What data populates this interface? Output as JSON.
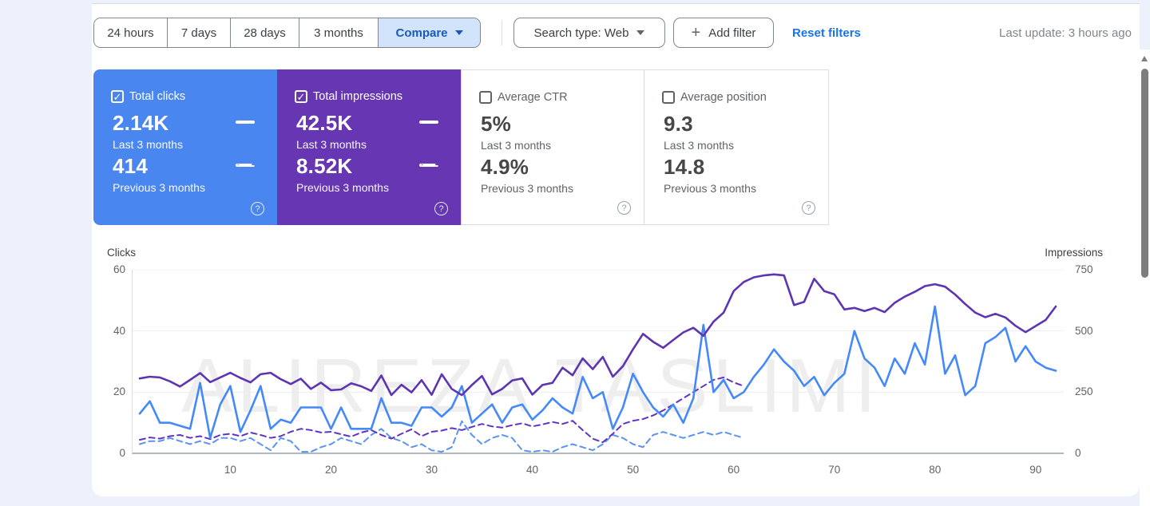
{
  "toolbar": {
    "date_buttons": [
      "24 hours",
      "7 days",
      "28 days",
      "3 months"
    ],
    "compare_label": "Compare",
    "search_type_label": "Search type: Web",
    "add_filter_label": "Add filter",
    "reset_filters_label": "Reset filters",
    "last_update": "Last update: 3 hours ago"
  },
  "cards": [
    {
      "label": "Total clicks",
      "checked": true,
      "bg": "#4a86f0",
      "value1": "2.14K",
      "caption1": "Last 3 months",
      "value2": "414",
      "caption2": "Previous 3 months"
    },
    {
      "label": "Total impressions",
      "checked": true,
      "bg": "#6636b3",
      "value1": "42.5K",
      "caption1": "Last 3 months",
      "value2": "8.52K",
      "caption2": "Previous 3 months"
    },
    {
      "label": "Average CTR",
      "checked": false,
      "bg": "#ffffff",
      "value1": "5%",
      "caption1": "Last 3 months",
      "value2": "4.9%",
      "caption2": "Previous 3 months"
    },
    {
      "label": "Average position",
      "checked": false,
      "bg": "#ffffff",
      "value1": "9.3",
      "caption1": "Last 3 months",
      "value2": "14.8",
      "caption2": "Previous 3 months"
    }
  ],
  "colors": {
    "clicks_line": "#4489f7",
    "impressions_line": "#5e35b1",
    "card_clicks_bg": "#4a86f0",
    "card_impressions_bg": "#6636b3",
    "link_blue": "#1a73e8",
    "compare_bg": "#d2e3fc",
    "page_bg": "#edf1fb"
  },
  "chart_data": {
    "type": "line",
    "title": "",
    "watermark": "ALIREZA TASLIMI",
    "left_axis": {
      "label": "Clicks",
      "max": 60,
      "ticks": [
        0,
        20,
        40,
        60
      ]
    },
    "right_axis": {
      "label": "Impressions",
      "max": 750,
      "ticks": [
        0,
        250,
        500,
        750
      ]
    },
    "x_ticks": [
      10,
      20,
      30,
      40,
      50,
      60,
      70,
      80,
      90
    ],
    "grid": true,
    "series": [
      {
        "name": "total-clicks-last-3-months",
        "axis": "left",
        "style": "solid",
        "color": "#4489f7",
        "values": [
          13,
          17,
          10,
          10,
          9,
          8,
          23,
          5,
          16,
          22,
          7,
          14,
          22,
          8,
          11,
          10,
          15,
          15,
          15,
          8,
          15,
          8,
          8,
          8,
          18,
          10,
          10,
          9,
          15,
          15,
          12,
          15,
          22,
          10,
          13,
          16,
          10,
          15,
          16,
          11,
          14,
          18,
          15,
          13,
          25,
          18,
          20,
          8,
          15,
          26,
          20,
          15,
          12,
          16,
          10,
          18,
          42,
          20,
          24,
          18,
          20,
          25,
          29,
          34,
          30,
          27,
          22,
          25,
          19,
          23,
          26,
          40,
          31,
          28,
          22,
          31,
          26,
          36,
          29,
          48,
          26,
          32,
          19,
          22,
          36,
          38,
          41,
          30,
          35,
          30,
          28,
          27
        ]
      },
      {
        "name": "total-impressions-last-3-months",
        "axis": "right",
        "style": "solid",
        "color": "#5e35b1",
        "values": [
          306,
          313,
          310,
          294,
          273,
          300,
          328,
          291,
          310,
          329,
          308,
          290,
          323,
          329,
          303,
          283,
          305,
          263,
          289,
          258,
          261,
          286,
          274,
          255,
          318,
          238,
          280,
          249,
          299,
          239,
          323,
          263,
          238,
          279,
          316,
          241,
          263,
          298,
          306,
          240,
          279,
          288,
          350,
          319,
          388,
          344,
          394,
          313,
          356,
          425,
          488,
          456,
          431,
          463,
          494,
          513,
          480,
          538,
          575,
          663,
          700,
          719,
          727,
          731,
          727,
          606,
          619,
          713,
          663,
          650,
          588,
          594,
          581,
          594,
          577,
          615,
          640,
          660,
          683,
          691,
          681,
          649,
          610,
          575,
          556,
          570,
          555,
          521,
          495,
          520,
          545,
          600
        ]
      },
      {
        "name": "total-clicks-previous-3-months",
        "axis": "left",
        "style": "dashed",
        "color": "#5a93f0",
        "values": [
          3,
          4,
          4,
          5,
          4,
          3,
          4,
          3,
          5,
          5,
          4,
          5,
          3,
          1,
          5,
          4,
          0.5,
          0.5,
          2,
          3,
          5,
          4,
          3,
          6,
          8,
          5,
          4,
          2,
          3,
          1,
          0.5,
          2,
          10.5,
          6,
          3,
          5,
          6,
          5,
          1,
          0.5,
          1,
          0.5,
          2,
          3,
          2,
          1,
          3,
          6,
          5,
          3,
          2,
          6,
          7,
          6,
          5,
          6,
          7,
          6,
          7,
          6,
          5
        ]
      },
      {
        "name": "total-impressions-previous-3-months",
        "axis": "right",
        "style": "dashed",
        "color": "#5f35c0",
        "values": [
          55,
          65,
          60,
          70,
          75,
          63,
          70,
          58,
          75,
          80,
          70,
          85,
          75,
          63,
          70,
          88,
          100,
          95,
          85,
          88,
          78,
          68,
          85,
          95,
          75,
          60,
          80,
          98,
          70,
          88,
          93,
          103,
          95,
          108,
          120,
          110,
          105,
          115,
          123,
          110,
          118,
          128,
          120,
          133,
          95,
          60,
          45,
          80,
          120,
          133,
          140,
          155,
          175,
          200,
          225,
          250,
          275,
          300,
          310,
          290,
          275
        ]
      }
    ]
  }
}
